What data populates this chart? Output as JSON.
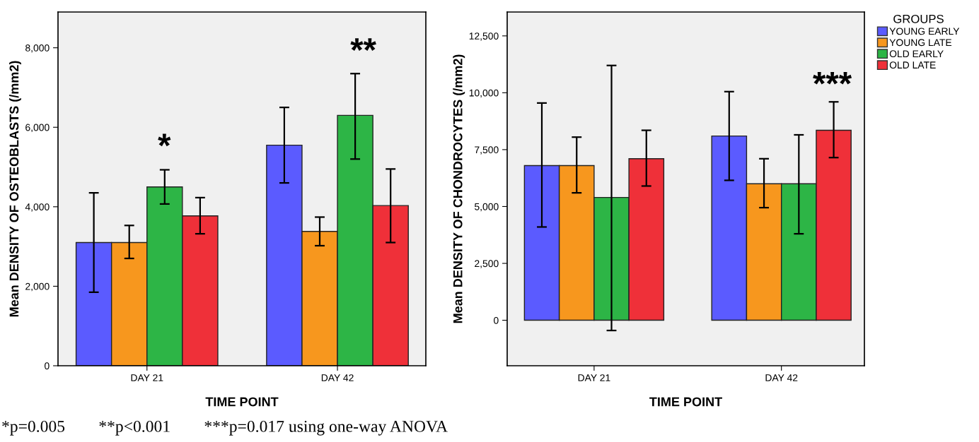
{
  "chart_data": [
    {
      "type": "bar",
      "xlabel": "TIME POINT",
      "ylabel": "Mean DENSITY OF OSTEOBLASTS (/mm2)",
      "categories": [
        "DAY 21",
        "DAY 42"
      ],
      "ylim": [
        0,
        8900
      ],
      "yticks": [
        0,
        {
          "value": 2000,
          "label": "2,000"
        },
        {
          "value": 4000,
          "label": "4,000"
        },
        {
          "value": 6000,
          "label": "6,000"
        },
        {
          "value": 8000,
          "label": "8,000"
        }
      ],
      "grid": false,
      "legend": "right",
      "legend_title": "GROUPS",
      "series": [
        {
          "name": "YOUNG EARLY",
          "color": "#5b5bff",
          "values": [
            3100,
            5550
          ],
          "errors": [
            [
              1850,
              4350
            ],
            [
              4600,
              6500
            ]
          ]
        },
        {
          "name": "YOUNG LATE",
          "color": "#f7971e",
          "values": [
            3100,
            3380
          ],
          "errors": [
            [
              2700,
              3530
            ],
            [
              3020,
              3740
            ]
          ]
        },
        {
          "name": "OLD EARLY",
          "color": "#2db546",
          "values": [
            4500,
            6300
          ],
          "errors": [
            [
              4070,
              4930
            ],
            [
              5200,
              7350
            ]
          ]
        },
        {
          "name": "OLD LATE",
          "color": "#ef3039",
          "values": [
            3770,
            4030
          ],
          "errors": [
            [
              3320,
              4230
            ],
            [
              3100,
              4950
            ]
          ]
        }
      ],
      "annotations": [
        "*",
        "**",
        "*p=0.005        **p<0.001        ***p=0.017 using one-way ANOVA"
      ]
    },
    {
      "type": "bar",
      "xlabel": "TIME POINT",
      "ylabel": "Mean DENSITY OF CHONDROCYTES (/mm2)",
      "categories": [
        "DAY 21",
        "DAY 42"
      ],
      "ylim": [
        -2000,
        13550
      ],
      "yticks": [
        0,
        {
          "value": 2500,
          "label": "2,500"
        },
        {
          "value": 5000,
          "label": "5,000"
        },
        {
          "value": 7500,
          "label": "7,500"
        },
        {
          "value": 10000,
          "label": "10,000"
        },
        {
          "value": 12500,
          "label": "12,500"
        }
      ],
      "grid": false,
      "series": [
        {
          "color": "#5b5bff",
          "values": [
            6800,
            8100
          ],
          "errors": [
            [
              4100,
              9550
            ],
            [
              6150,
              10050
            ]
          ]
        },
        {
          "color": "#f7971e",
          "values": [
            6800,
            6000
          ],
          "errors": [
            [
              5600,
              8050
            ],
            [
              4950,
              7100
            ]
          ]
        },
        {
          "color": "#2db546",
          "values": [
            5400,
            6000
          ],
          "errors": [
            [
              -450,
              11200
            ],
            [
              3800,
              8150
            ]
          ]
        },
        {
          "color": "#ef3039",
          "values": [
            7100,
            8350
          ],
          "errors": [
            [
              5900,
              8350
            ],
            [
              7150,
              9600
            ]
          ]
        }
      ],
      "annotations": [
        "***"
      ]
    }
  ]
}
